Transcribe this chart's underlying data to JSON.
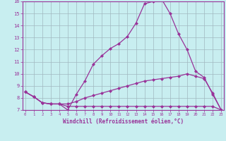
{
  "xlabel": "Windchill (Refroidissement éolien,°C)",
  "bg_color": "#c8eef0",
  "line_color": "#993399",
  "grid_color": "#a0b8c0",
  "xmin": 0,
  "xmax": 23,
  "ymin": 7,
  "ymax": 16,
  "line1_x": [
    0,
    1,
    2,
    3,
    4,
    5,
    6,
    7,
    8,
    9,
    10,
    11,
    12,
    13,
    14,
    15,
    16,
    17,
    18,
    19,
    20,
    21,
    22,
    23
  ],
  "line1_y": [
    8.5,
    8.1,
    7.6,
    7.5,
    7.5,
    7.0,
    8.3,
    9.4,
    10.8,
    11.5,
    12.1,
    12.5,
    13.1,
    14.2,
    15.8,
    16.0,
    16.2,
    15.0,
    13.3,
    12.0,
    10.2,
    9.7,
    8.3,
    7.0
  ],
  "line2_x": [
    0,
    1,
    2,
    3,
    4,
    5,
    6,
    7,
    8,
    9,
    10,
    11,
    12,
    13,
    14,
    15,
    16,
    17,
    18,
    19,
    20,
    21,
    22,
    23
  ],
  "line2_y": [
    8.5,
    8.1,
    7.6,
    7.5,
    7.5,
    7.3,
    7.3,
    7.3,
    7.3,
    7.3,
    7.3,
    7.3,
    7.3,
    7.3,
    7.3,
    7.3,
    7.3,
    7.3,
    7.3,
    7.3,
    7.3,
    7.3,
    7.3,
    7.0
  ],
  "line3_x": [
    0,
    1,
    2,
    3,
    4,
    5,
    6,
    7,
    8,
    9,
    10,
    11,
    12,
    13,
    14,
    15,
    16,
    17,
    18,
    19,
    20,
    21,
    22,
    23
  ],
  "line3_y": [
    8.5,
    8.1,
    7.6,
    7.5,
    7.5,
    7.5,
    7.7,
    8.0,
    8.2,
    8.4,
    8.6,
    8.8,
    9.0,
    9.2,
    9.4,
    9.5,
    9.6,
    9.7,
    9.8,
    10.0,
    9.8,
    9.6,
    8.4,
    7.0
  ]
}
